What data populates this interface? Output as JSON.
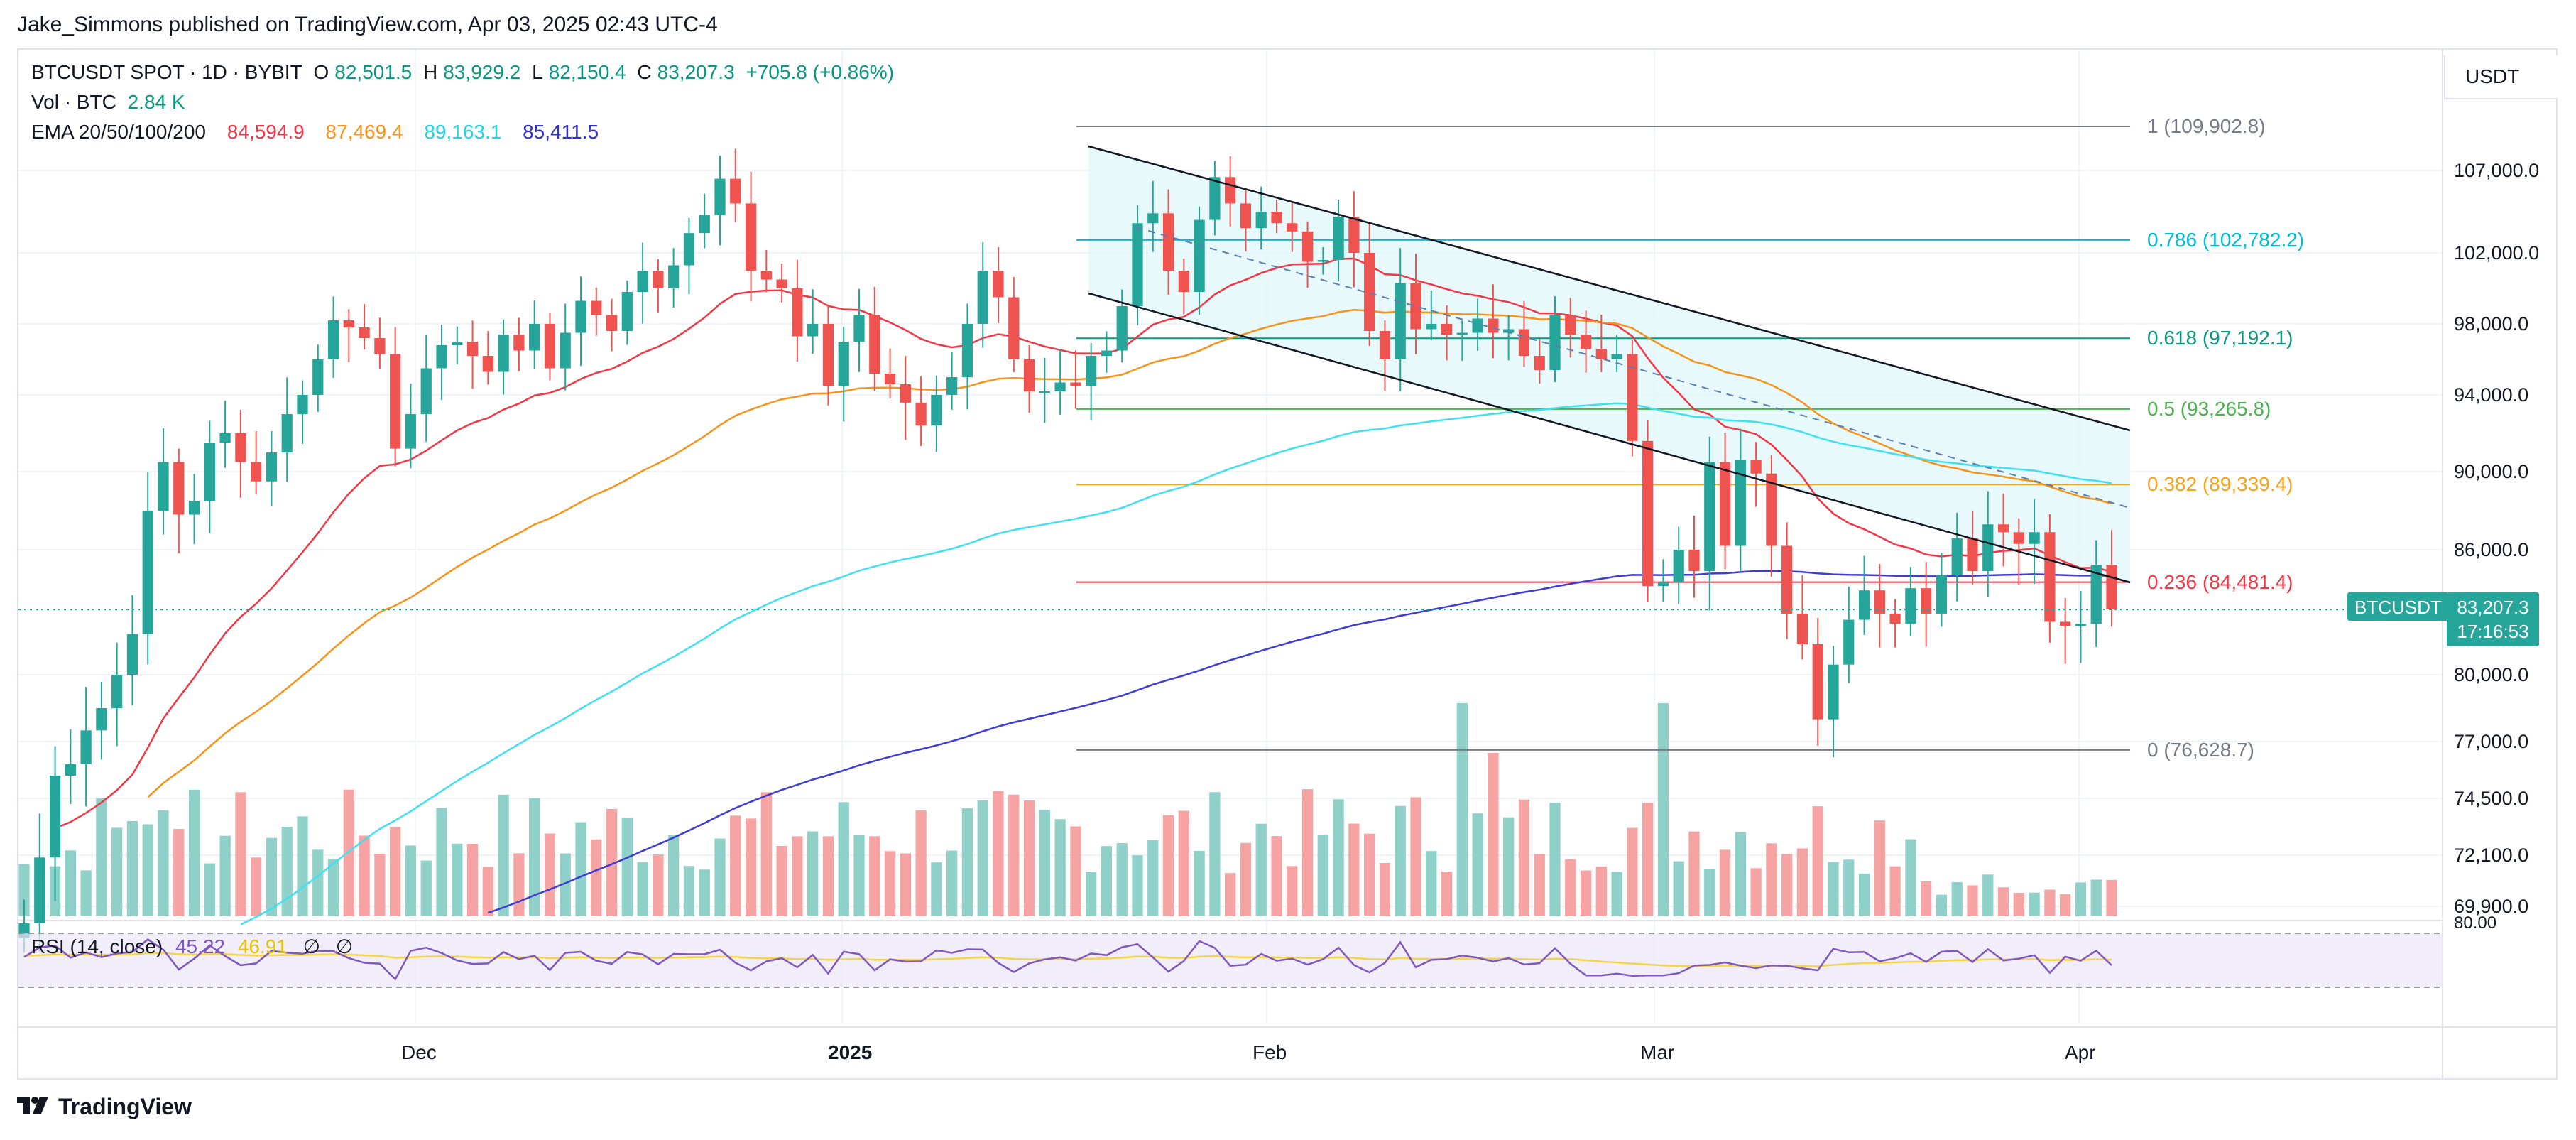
{
  "publisher": "Jake_Simmons published on TradingView.com, Apr 03, 2025 02:43 UTC-4",
  "header": {
    "symbol": "BTCUSDT SPOT · 1D · BYBIT",
    "o_label": "O",
    "o_value": "82,501.5",
    "h_label": "H",
    "h_value": "83,929.2",
    "l_label": "L",
    "l_value": "82,150.4",
    "c_label": "C",
    "c_value": "83,207.3",
    "change": "+705.8 (+0.86%)",
    "vol_label": "Vol · BTC",
    "vol_value": "2.84 K",
    "ema_label": "EMA 20/50/100/200",
    "ema20": "84,594.9",
    "ema50": "87,469.4",
    "ema100": "89,163.1",
    "ema200": "85,411.5"
  },
  "currency": "USDT",
  "current": {
    "tag": "BTCUSDT",
    "price": "83,207.3",
    "countdown": "17:16:53"
  },
  "rsi": {
    "label": "RSI (14, close)",
    "value": "45.22",
    "ma": "46.91",
    "n1": "∅",
    "n2": "∅",
    "level": "80.00"
  },
  "logo_text": "TradingView",
  "colors": {
    "up": "#26a69a",
    "down": "#ef5350",
    "ema20": "#f23645",
    "ema50": "#f7931a",
    "ema100": "#40e0f0",
    "ema200": "#3d3dd6",
    "rsi": "#7e57c2",
    "rsi_ma": "#f5d547"
  },
  "chart_data": {
    "type": "candlestick",
    "title": "BTCUSDT SPOT · 1D · BYBIT",
    "y_axis_ticks": [
      107000,
      102000,
      98000,
      94000,
      90000,
      86000,
      80000,
      77000,
      74500,
      72100,
      69900
    ],
    "y_axis_labels": [
      "107,000.0",
      "102,000.0",
      "98,000.0",
      "94,000.0",
      "90,000.0",
      "86,000.0",
      "80,000.0",
      "77,000.0",
      "74,500.0",
      "72,100.0",
      "69,900.0"
    ],
    "x_axis_labels": [
      "Dec",
      "2025",
      "Feb",
      "Mar",
      "Apr"
    ],
    "fibonacci": [
      {
        "label": "1 (109,902.8)",
        "level": 1,
        "price": 109902.8,
        "color": "#787b86"
      },
      {
        "label": "0.786 (102,782.2)",
        "level": 0.786,
        "price": 102782.2,
        "color": "#00bcd4"
      },
      {
        "label": "0.618 (97,192.1)",
        "level": 0.618,
        "price": 97192.1,
        "color": "#089981"
      },
      {
        "label": "0.5 (93,265.8)",
        "level": 0.5,
        "price": 93265.8,
        "color": "#4caf50"
      },
      {
        "label": "0.382 (89,339.4)",
        "level": 0.382,
        "price": 89339.4,
        "color": "#f7a21b"
      },
      {
        "label": "0.236 (84,481.4)",
        "level": 0.236,
        "price": 84481.4,
        "color": "#f23645"
      },
      {
        "label": "0 (76,628.7)",
        "level": 0,
        "price": 76628.7,
        "color": "#787b86"
      }
    ],
    "series_closes_approx": [
      69000,
      72000,
      75500,
      76000,
      77500,
      78500,
      80000,
      82000,
      88000,
      90500,
      87800,
      88500,
      91500,
      92000,
      90500,
      89500,
      91000,
      93000,
      94000,
      96000,
      98200,
      97800,
      97200,
      96300,
      91200,
      93000,
      95500,
      96800,
      97000,
      96200,
      95300,
      97400,
      96500,
      98000,
      95500,
      97500,
      99300,
      98500,
      97600,
      99800,
      101000,
      100000,
      101300,
      103200,
      104300,
      106500,
      105000,
      101000,
      100500,
      100000,
      97300,
      98000,
      94500,
      97000,
      98500,
      95200,
      94600,
      93600,
      92400,
      94000,
      95000,
      98000,
      101000,
      99500,
      96000,
      94200,
      94200,
      94700,
      94500,
      96200,
      96500,
      99000,
      103800,
      104400,
      101000,
      99800,
      104000,
      106600,
      105000,
      103500,
      104500,
      103800,
      103300,
      101500,
      101600,
      104200,
      102000,
      97600,
      96000,
      100300,
      97700,
      98000,
      97400,
      97500,
      98300,
      97500,
      97700,
      96200,
      95400,
      98500,
      97400,
      96600,
      96000,
      96300,
      91600,
      84300,
      84500,
      86000,
      85000,
      90500,
      86200,
      90600,
      89900,
      86200,
      83000,
      81500,
      78000,
      80500,
      82700,
      84100,
      83000,
      82500,
      84200,
      83000,
      84800,
      86600,
      85000,
      87300,
      86900,
      86300,
      86900,
      82600,
      82400,
      82500,
      85300,
      83200
    ],
    "volume_units": "K BTC",
    "current_price": 83207.3
  }
}
